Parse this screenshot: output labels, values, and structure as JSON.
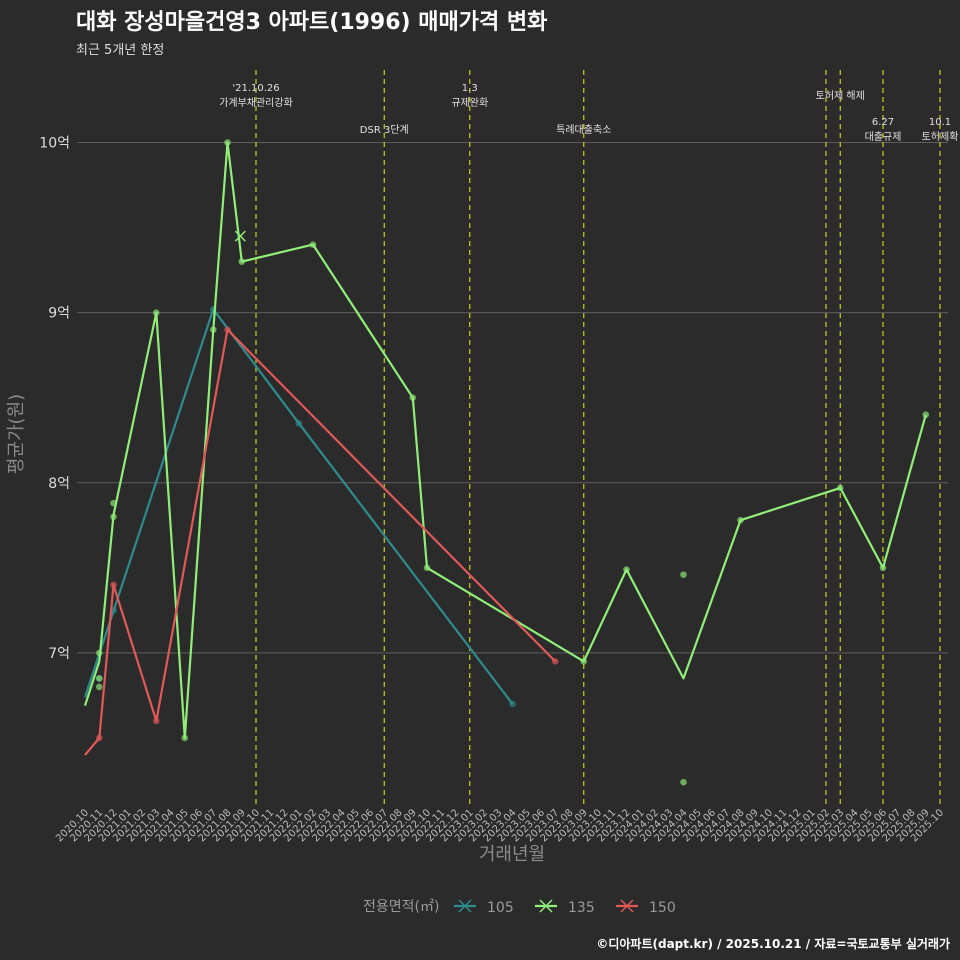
{
  "chart_data": {
    "type": "line",
    "title": "대화 장성마을건영3 아파트(1996) 매매가격 변화",
    "subtitle": "최근 5개년 한정",
    "xlabel": "거래년월",
    "ylabel": "평균가(원)",
    "ylim": [
      6.1,
      10.45
    ],
    "y_ticks": [
      {
        "value": 7,
        "label": "7억"
      },
      {
        "value": 8,
        "label": "8억"
      },
      {
        "value": 9,
        "label": "9억"
      },
      {
        "value": 10,
        "label": "10억"
      }
    ],
    "categories": [
      "2020.10",
      "2020.11",
      "2020.12",
      "2021.01",
      "2021.02",
      "2021.03",
      "2021.04",
      "2021.05",
      "2021.06",
      "2021.07",
      "2021.08",
      "2021.09",
      "2021.10",
      "2021.11",
      "2021.12",
      "2022.01",
      "2022.02",
      "2022.03",
      "2022.04",
      "2022.05",
      "2022.06",
      "2022.07",
      "2022.08",
      "2022.09",
      "2022.10",
      "2022.11",
      "2022.12",
      "2023.01",
      "2023.02",
      "2023.03",
      "2023.04",
      "2023.05",
      "2023.06",
      "2023.07",
      "2023.08",
      "2023.09",
      "2023.10",
      "2023.11",
      "2023.12",
      "2024.01",
      "2024.02",
      "2024.03",
      "2024.04",
      "2024.05",
      "2024.06",
      "2024.07",
      "2024.08",
      "2024.09",
      "2024.10",
      "2024.11",
      "2024.12",
      "2025.01",
      "2025.02",
      "2025.03",
      "2025.04",
      "2025.05",
      "2025.06",
      "2025.07",
      "2025.08",
      "2025.09",
      "2025.10"
    ],
    "legend_title": "전용면적(㎡)",
    "series": [
      {
        "name": "105",
        "color": "#2e8b8b",
        "line": [
          [
            0,
            6.74
          ],
          [
            9,
            9.02
          ],
          [
            15,
            8.35
          ],
          [
            30,
            6.7
          ]
        ],
        "points": [
          [
            1,
            6.85
          ],
          [
            2,
            7.25
          ],
          [
            9,
            9.02
          ],
          [
            15,
            8.35
          ],
          [
            30,
            6.7
          ]
        ]
      },
      {
        "name": "135",
        "color": "#90ee78",
        "line": [
          [
            0,
            6.69
          ],
          [
            1,
            6.95
          ],
          [
            2,
            7.81
          ],
          [
            5,
            9.0
          ],
          [
            7,
            6.5
          ],
          [
            9,
            8.9
          ],
          [
            10,
            10.0
          ],
          [
            11,
            9.3
          ],
          [
            16,
            9.4
          ],
          [
            23,
            8.5
          ],
          [
            24,
            7.5
          ],
          [
            35,
            6.95
          ],
          [
            38,
            7.49
          ],
          [
            42,
            6.85
          ],
          [
            46,
            7.78
          ],
          [
            53,
            7.97
          ],
          [
            56,
            7.5
          ],
          [
            59,
            8.4
          ]
        ],
        "points": [
          [
            1,
            7.0
          ],
          [
            1,
            6.85
          ],
          [
            1,
            6.8
          ],
          [
            2,
            7.88
          ],
          [
            2,
            7.8
          ],
          [
            5,
            9.0
          ],
          [
            7,
            6.5
          ],
          [
            9,
            8.9
          ],
          [
            10,
            10.0
          ],
          [
            11,
            9.3
          ],
          [
            16,
            9.4
          ],
          [
            23,
            8.5
          ],
          [
            24,
            7.5
          ],
          [
            35,
            6.95
          ],
          [
            38,
            7.49
          ],
          [
            42,
            7.46
          ],
          [
            42,
            6.24
          ],
          [
            46,
            7.78
          ],
          [
            53,
            7.97
          ],
          [
            56,
            7.5
          ],
          [
            59,
            8.4
          ]
        ],
        "cross": [
          [
            10.9,
            9.45
          ]
        ]
      },
      {
        "name": "150",
        "color": "#e05858",
        "line": [
          [
            0,
            6.4
          ],
          [
            1,
            6.5
          ],
          [
            2,
            7.4
          ],
          [
            5,
            6.6
          ],
          [
            10,
            8.9
          ],
          [
            33,
            6.95
          ]
        ],
        "points": [
          [
            1,
            6.5
          ],
          [
            2,
            7.4
          ],
          [
            5,
            6.6
          ],
          [
            10,
            8.9
          ],
          [
            33,
            6.95
          ]
        ]
      }
    ],
    "events": [
      {
        "x": 12,
        "lines": [
          "'21.10.26",
          "가계부채관리강화"
        ],
        "level": 0
      },
      {
        "x": 21,
        "lines": [
          "DSR 3단계"
        ],
        "level": 2
      },
      {
        "x": 27,
        "lines": [
          "1.3",
          "규제완화"
        ],
        "level": 0
      },
      {
        "x": 35,
        "lines": [
          "특례대출축소"
        ],
        "level": 2
      },
      {
        "x": 52,
        "lines": [],
        "level": 1
      },
      {
        "x": 53,
        "lines": [
          "토허제 해제"
        ],
        "level": 1
      },
      {
        "x": 56,
        "lines": [
          "6.27",
          "대출규제"
        ],
        "level": 3
      },
      {
        "x": 60,
        "lines": [
          "10.1",
          "토허제확"
        ],
        "level": 3
      }
    ],
    "caption": "©디아파트(dapt.kr) / 2025.10.21 / 자료=국토교통부 실거래가"
  },
  "colors": {
    "background": "#2b2b2b",
    "grid": "#5e5e5e",
    "event_line": "#c8d21e"
  }
}
